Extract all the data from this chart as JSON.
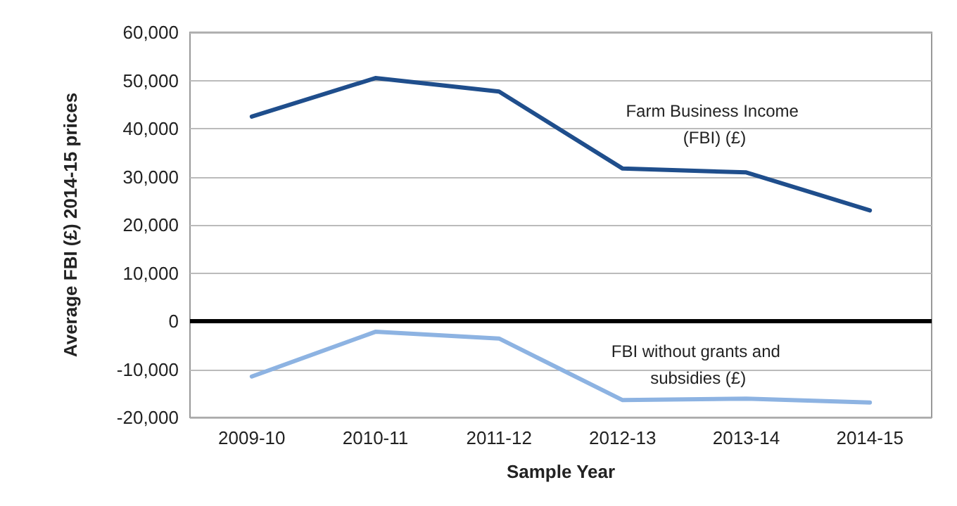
{
  "chart_data": {
    "type": "line",
    "xlabel": "Sample Year",
    "ylabel": "Average FBI (£) 2014-15 prices",
    "categories": [
      "2009-10",
      "2010-11",
      "2011-12",
      "2012-13",
      "2013-14",
      "2014-15"
    ],
    "series": [
      {
        "name": "Farm Business Income (FBI) (£)",
        "color": "#1f4e8c",
        "values": [
          42500,
          50500,
          47700,
          31700,
          30900,
          23000
        ]
      },
      {
        "name": "FBI without grants and subsidies (£)",
        "color": "#8db3e2",
        "values": [
          -11500,
          -2200,
          -3600,
          -16400,
          -16100,
          -16900
        ]
      }
    ],
    "ylim": [
      -20000,
      60000
    ],
    "yticks": [
      {
        "value": -20000,
        "label": "-20,000"
      },
      {
        "value": -10000,
        "label": "-10,000"
      },
      0,
      {
        "value": 10000,
        "label": "10,000"
      },
      {
        "value": 20000,
        "label": "20,000"
      },
      {
        "value": 30000,
        "label": "30,000"
      },
      {
        "value": 40000,
        "label": "40,000"
      },
      {
        "value": 50000,
        "label": "50,000"
      },
      {
        "value": 60000,
        "label": "60,000"
      }
    ],
    "ref_lines": [
      {
        "axis": "y",
        "value": 0,
        "color": "#000000"
      }
    ],
    "grid": "y",
    "legend": false,
    "marker": "none",
    "line_style": "solid"
  }
}
